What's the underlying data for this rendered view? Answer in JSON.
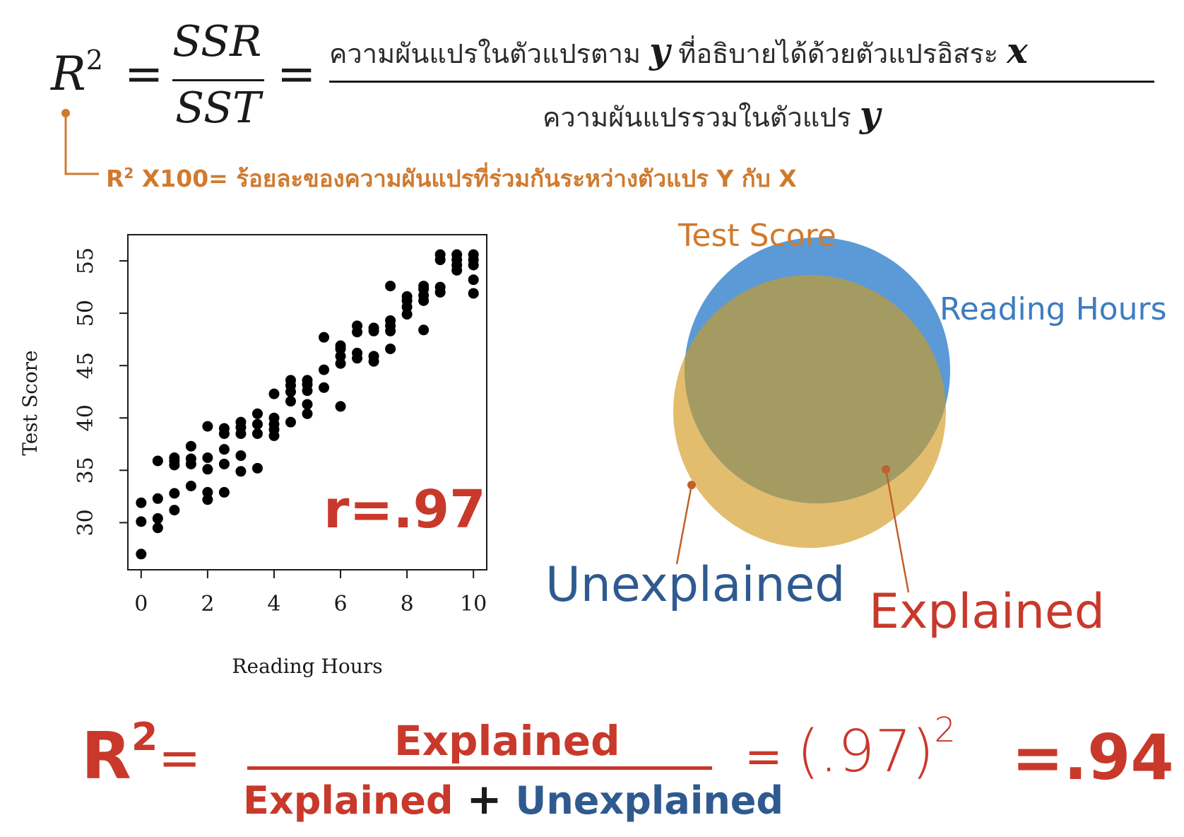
{
  "formula_top": {
    "lhs": "R",
    "lhs_exp": "2",
    "eq": "=",
    "frac_num": "SSR",
    "frac_den": "SST",
    "eq2": "=",
    "thai_num": "ความผันแปรในตัวแปรตาม",
    "thai_num_var": "y",
    "thai_num_rest": "ที่อธิบายได้ด้วยตัวแปรอิสระ",
    "thai_num_var2": "x",
    "thai_den": "ความผันแปรรวมในตัวแปร",
    "thai_den_var": "y"
  },
  "r2_note": {
    "prefix": "R",
    "exp": "2",
    "text": "X100= ร้อยละของความผันแปรที่ร่วมกันระหว่างตัวแปร Y กับ X"
  },
  "scatter_annotation": "r=.97",
  "venn": {
    "test_score_label": "Test Score",
    "reading_hours_label": "Reading Hours",
    "unexplained_label": "Unexplained",
    "explained_label": "Explained"
  },
  "bottom_equation": {
    "lhs": "R",
    "lhs_exp": "2",
    "eq": "=",
    "numerator": "Explained",
    "den_left": "Explained",
    "plus": "+",
    "den_right": "Unexplained",
    "eq2": "=",
    "paren_value": "(.97)",
    "paren_exp": "2",
    "result": "=.94"
  },
  "colors": {
    "orange": "#d07a2e",
    "red": "#c8392b",
    "blue_text": "#2e5a8f",
    "reading_blue": "#3d7cc0",
    "circle_tan": "#e3bd6e",
    "circle_blue": "#5b9ad6",
    "overlap": "#a49b63"
  },
  "chart_data": {
    "type": "scatter",
    "xlabel": "Reading Hours",
    "ylabel": "Test Score",
    "x_ticks": [
      "0",
      "2",
      "4",
      "6",
      "8",
      "10"
    ],
    "y_ticks": [
      "30",
      "35",
      "40",
      "45",
      "50",
      "55"
    ],
    "xlim": [
      -0.4,
      10.4
    ],
    "ylim": [
      25.5,
      57.5
    ],
    "points": [
      [
        0,
        27
      ],
      [
        0,
        30.1
      ],
      [
        0,
        31.9
      ],
      [
        0.5,
        29.5
      ],
      [
        0.5,
        30.4
      ],
      [
        0.5,
        32.3
      ],
      [
        0.5,
        35.9
      ],
      [
        1,
        31.2
      ],
      [
        1,
        32.8
      ],
      [
        1,
        35.5
      ],
      [
        1,
        35.9
      ],
      [
        1,
        36.2
      ],
      [
        1.5,
        33.5
      ],
      [
        1.5,
        35.6
      ],
      [
        1.5,
        36.1
      ],
      [
        1.5,
        37.3
      ],
      [
        2,
        32.2
      ],
      [
        2,
        32.9
      ],
      [
        2,
        35.1
      ],
      [
        2,
        36.2
      ],
      [
        2,
        39.2
      ],
      [
        2.5,
        32.9
      ],
      [
        2.5,
        35.6
      ],
      [
        2.5,
        37
      ],
      [
        2.5,
        38.5
      ],
      [
        2.5,
        39
      ],
      [
        3,
        34.9
      ],
      [
        3,
        36.4
      ],
      [
        3,
        38.5
      ],
      [
        3,
        39.1
      ],
      [
        3,
        39.6
      ],
      [
        3.5,
        35.2
      ],
      [
        3.5,
        38.5
      ],
      [
        3.5,
        39.4
      ],
      [
        3.5,
        40.4
      ],
      [
        4,
        38.3
      ],
      [
        4,
        38.9
      ],
      [
        4,
        39.4
      ],
      [
        4,
        40
      ],
      [
        4,
        42.3
      ],
      [
        4.5,
        39.6
      ],
      [
        4.5,
        41.6
      ],
      [
        4.5,
        42.5
      ],
      [
        4.5,
        43.1
      ],
      [
        4.5,
        43.6
      ],
      [
        5,
        40.4
      ],
      [
        5,
        41.3
      ],
      [
        5,
        42.6
      ],
      [
        5,
        43.2
      ],
      [
        5,
        43.6
      ],
      [
        5.5,
        42.9
      ],
      [
        5.5,
        44.6
      ],
      [
        5.5,
        47.7
      ],
      [
        6,
        41.1
      ],
      [
        6,
        45.2
      ],
      [
        6,
        45.9
      ],
      [
        6,
        46.6
      ],
      [
        6,
        46.9
      ],
      [
        6.5,
        45.7
      ],
      [
        6.5,
        46.2
      ],
      [
        6.5,
        48.2
      ],
      [
        6.5,
        48.8
      ],
      [
        7,
        45.4
      ],
      [
        7,
        45.9
      ],
      [
        7,
        48.3
      ],
      [
        7,
        48.6
      ],
      [
        7.5,
        46.6
      ],
      [
        7.5,
        48.3
      ],
      [
        7.5,
        48.8
      ],
      [
        7.5,
        49.3
      ],
      [
        7.5,
        52.6
      ],
      [
        8,
        49.9
      ],
      [
        8,
        50.6
      ],
      [
        8,
        51.2
      ],
      [
        8,
        51.6
      ],
      [
        8.5,
        48.4
      ],
      [
        8.5,
        51.2
      ],
      [
        8.5,
        51.7
      ],
      [
        8.5,
        52.3
      ],
      [
        8.5,
        52.6
      ],
      [
        9,
        52
      ],
      [
        9,
        52.5
      ],
      [
        9,
        55.1
      ],
      [
        9,
        55.6
      ],
      [
        9.5,
        54.1
      ],
      [
        9.5,
        54.6
      ],
      [
        9.5,
        55.1
      ],
      [
        9.5,
        55.6
      ],
      [
        10,
        51.9
      ],
      [
        10,
        53.2
      ],
      [
        10,
        54.6
      ],
      [
        10,
        55.1
      ],
      [
        10,
        55.6
      ]
    ]
  }
}
